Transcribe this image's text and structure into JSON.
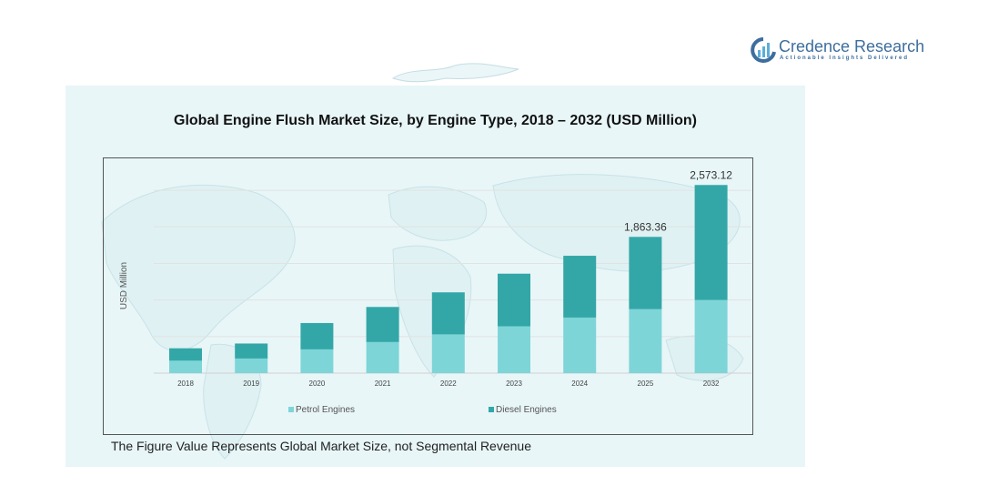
{
  "brand": {
    "name": "Credence Research",
    "tagline": "Actionable Insights Delivered"
  },
  "colors": {
    "petrol": "#7dd5d8",
    "diesel": "#33a7a7",
    "panel": "#e8f6f8",
    "brand": "#3d6e9e"
  },
  "footnote": "The Figure Value Represents Global Market Size, not Segmental Revenue",
  "chart_data": {
    "type": "bar",
    "stacked": true,
    "title": "Global Engine Flush Market Size, by Engine Type, 2018 – 2032 (USD Million)",
    "xlabel": "",
    "ylabel": "USD Million",
    "categories": [
      "2018",
      "2019",
      "2020",
      "2021",
      "2022",
      "2023",
      "2024",
      "2025",
      "2032"
    ],
    "series": [
      {
        "name": "Petrol Engines",
        "values": [
          170,
          200,
          325,
          425,
          530,
          640,
          760,
          875,
          1000
        ]
      },
      {
        "name": "Diesel Engines",
        "values": [
          170,
          205,
          360,
          480,
          575,
          720,
          845,
          988.36,
          1573.12
        ]
      }
    ],
    "data_labels": {
      "2025": "1,863.36",
      "2032": "2,573.12"
    },
    "ylim": [
      0,
      2900
    ],
    "grid": true,
    "legend": "bottom"
  }
}
